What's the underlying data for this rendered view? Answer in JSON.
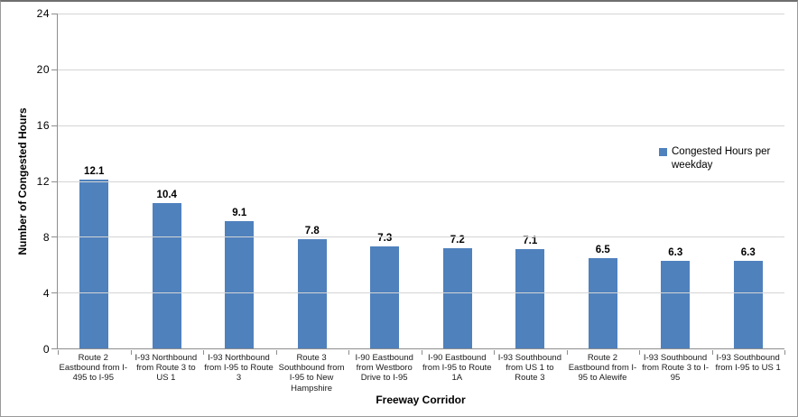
{
  "figure": {
    "background": "#ffffff",
    "border_color": "#7f7f7f"
  },
  "colors": {
    "bar": "#4f81bd",
    "gridline": "#d4d4d4",
    "axis_line": "#8e8e8e",
    "text": "#000000"
  },
  "chart_data": {
    "type": "bar",
    "title": "",
    "xlabel": "Freeway Corridor",
    "ylabel": "Number of Congested Hours",
    "ylim": [
      0,
      24
    ],
    "ytick_interval": 4,
    "yticks": [
      0,
      4,
      8,
      12,
      16,
      20,
      24
    ],
    "grid": true,
    "legend": {
      "label": "Congested Hours per weekday",
      "position": "right"
    },
    "categories": [
      "Route 2 Eastbound from I-495 to I-95",
      "I-93 Northbound from Route 3 to US 1",
      "I-93 Northbound from I-95 to Route 3",
      "Route 3 Southbound from I-95 to New Hampshire",
      "I-90 Eastbound from Westboro Drive to I-95",
      "I-90 Eastbound from I-95 to Route 1A",
      "I-93 Southbound from US 1 to Route 3",
      "Route 2 Eastbound from I-95 to Alewife",
      "I-93 Southbound from Route 3 to I-95",
      "I-93 Southbound from I-95 to US 1"
    ],
    "values": [
      12.1,
      10.4,
      9.1,
      7.8,
      7.3,
      7.2,
      7.1,
      6.5,
      6.3,
      6.3
    ],
    "data_labels": [
      "12.1",
      "10.4",
      "9.1",
      "7.8",
      "7.3",
      "7.2",
      "7.1",
      "6.5",
      "6.3",
      "6.3"
    ]
  }
}
